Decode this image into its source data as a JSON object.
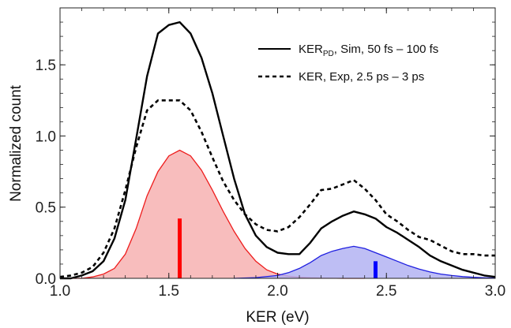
{
  "chart_data": {
    "type": "line",
    "title": "",
    "xlabel": "KER (eV)",
    "ylabel": "Normalized count",
    "xlim": [
      1.0,
      3.0
    ],
    "ylim": [
      0.0,
      1.9
    ],
    "xticks": [
      "1.0",
      "1.5",
      "2.0",
      "2.5",
      "3.0"
    ],
    "yticks": [
      "0.0",
      "0.5",
      "1.0",
      "1.5"
    ],
    "xtick_values": [
      1.0,
      1.5,
      2.0,
      2.5,
      3.0
    ],
    "ytick_values": [
      0.0,
      0.5,
      1.0,
      1.5
    ],
    "grid": false,
    "legend_position": "top-right",
    "legend": [
      {
        "main": "KER",
        "sub": "PD",
        "rest": ", Sim, 50 fs – 100 fs",
        "style": "solid",
        "color": "#000000"
      },
      {
        "main": "KER, Exp, 2.5 ps – 3 ps",
        "sub": "",
        "rest": "",
        "style": "dashed",
        "color": "#000000"
      }
    ],
    "series": [
      {
        "style": "solid",
        "color": "#000000",
        "x": [
          1.0,
          1.05,
          1.1,
          1.15,
          1.2,
          1.25,
          1.3,
          1.35,
          1.4,
          1.45,
          1.5,
          1.55,
          1.6,
          1.65,
          1.7,
          1.75,
          1.8,
          1.85,
          1.9,
          1.95,
          2.0,
          2.05,
          2.1,
          2.15,
          2.2,
          2.25,
          2.3,
          2.35,
          2.4,
          2.45,
          2.5,
          2.55,
          2.6,
          2.65,
          2.7,
          2.75,
          2.8,
          2.85,
          2.9,
          2.95,
          3.0
        ],
        "y": [
          0.0,
          0.0,
          0.02,
          0.05,
          0.12,
          0.28,
          0.55,
          0.98,
          1.42,
          1.72,
          1.78,
          1.8,
          1.72,
          1.55,
          1.3,
          1.0,
          0.7,
          0.45,
          0.3,
          0.22,
          0.18,
          0.17,
          0.17,
          0.25,
          0.35,
          0.4,
          0.44,
          0.47,
          0.45,
          0.42,
          0.36,
          0.32,
          0.27,
          0.22,
          0.16,
          0.12,
          0.09,
          0.06,
          0.04,
          0.02,
          0.01
        ]
      },
      {
        "style": "dashed",
        "color": "#000000",
        "x": [
          1.0,
          1.05,
          1.1,
          1.15,
          1.2,
          1.25,
          1.3,
          1.35,
          1.4,
          1.45,
          1.5,
          1.55,
          1.6,
          1.65,
          1.7,
          1.75,
          1.8,
          1.85,
          1.9,
          1.95,
          2.0,
          2.05,
          2.1,
          2.15,
          2.2,
          2.25,
          2.3,
          2.35,
          2.4,
          2.45,
          2.5,
          2.55,
          2.6,
          2.65,
          2.7,
          2.75,
          2.8,
          2.85,
          2.9,
          2.95,
          3.0
        ],
        "y": [
          0.01,
          0.02,
          0.04,
          0.08,
          0.18,
          0.35,
          0.62,
          0.92,
          1.18,
          1.25,
          1.25,
          1.25,
          1.18,
          1.03,
          0.85,
          0.68,
          0.55,
          0.45,
          0.38,
          0.34,
          0.33,
          0.36,
          0.43,
          0.52,
          0.62,
          0.63,
          0.66,
          0.69,
          0.63,
          0.55,
          0.45,
          0.4,
          0.34,
          0.29,
          0.27,
          0.23,
          0.19,
          0.17,
          0.17,
          0.16,
          0.16
        ]
      }
    ],
    "filled_components": [
      {
        "color": "#ee1c1c",
        "fill": "#f7b2b2",
        "x": [
          1.0,
          1.05,
          1.1,
          1.15,
          1.2,
          1.25,
          1.3,
          1.35,
          1.4,
          1.45,
          1.5,
          1.55,
          1.6,
          1.65,
          1.7,
          1.75,
          1.8,
          1.85,
          1.9,
          1.95,
          2.0,
          2.05,
          2.1,
          2.15,
          2.2,
          2.3,
          2.4
        ],
        "y": [
          0.0,
          0.0,
          0.0,
          0.01,
          0.03,
          0.07,
          0.17,
          0.35,
          0.58,
          0.75,
          0.86,
          0.9,
          0.86,
          0.76,
          0.62,
          0.47,
          0.33,
          0.21,
          0.12,
          0.06,
          0.03,
          0.015,
          0.008,
          0.004,
          0.002,
          0.0,
          0.0
        ]
      },
      {
        "color": "#1f1fe0",
        "fill": "#b3b3f2",
        "x": [
          1.8,
          1.9,
          2.0,
          2.05,
          2.1,
          2.15,
          2.2,
          2.25,
          2.3,
          2.35,
          2.4,
          2.45,
          2.5,
          2.55,
          2.6,
          2.65,
          2.7,
          2.75,
          2.8,
          2.85,
          2.9,
          2.95,
          3.0
        ],
        "y": [
          0.0,
          0.005,
          0.02,
          0.04,
          0.07,
          0.11,
          0.16,
          0.19,
          0.21,
          0.225,
          0.21,
          0.18,
          0.15,
          0.12,
          0.09,
          0.065,
          0.045,
          0.03,
          0.02,
          0.012,
          0.007,
          0.004,
          0.002
        ]
      }
    ],
    "markers": [
      {
        "x": 1.55,
        "y": 0.42,
        "color": "#ff0000"
      },
      {
        "x": 2.45,
        "y": 0.12,
        "color": "#0000ff"
      }
    ]
  }
}
